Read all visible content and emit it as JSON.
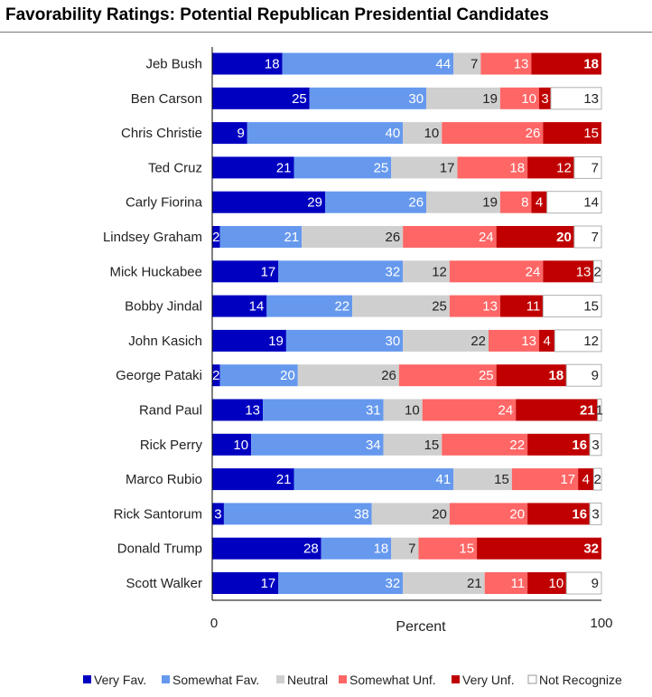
{
  "chart_data": {
    "type": "bar",
    "orientation": "horizontal",
    "stacked": true,
    "title": "Favorability Ratings: Potential Republican Presidential Candidates",
    "xlabel": "Percent",
    "ylabel": "",
    "xlim": [
      0,
      100
    ],
    "xticks": [
      "0",
      "100"
    ],
    "grid": false,
    "legend_position": "bottom",
    "categories": [
      "Jeb Bush",
      "Ben Carson",
      "Chris Christie",
      "Ted Cruz",
      "Carly Fiorina",
      "Lindsey Graham",
      "Mick Huckabee",
      "Bobby Jindal",
      "John Kasich",
      "George Pataki",
      "Rand Paul",
      "Rick Perry",
      "Marco Rubio",
      "Rick Santorum",
      "Donald Trump",
      "Scott Walker"
    ],
    "series": [
      {
        "name": "Very Fav.",
        "color": "#0000c0",
        "values": [
          18,
          25,
          9,
          21,
          29,
          2,
          17,
          14,
          19,
          2,
          13,
          10,
          21,
          3,
          28,
          17
        ]
      },
      {
        "name": "Somewhat Fav.",
        "color": "#6699ee",
        "values": [
          44,
          30,
          40,
          25,
          26,
          21,
          32,
          22,
          30,
          20,
          31,
          34,
          41,
          38,
          18,
          32
        ]
      },
      {
        "name": "Neutral",
        "color": "#cfcfcf",
        "values": [
          7,
          19,
          10,
          17,
          19,
          26,
          12,
          25,
          22,
          26,
          10,
          15,
          15,
          20,
          7,
          21
        ]
      },
      {
        "name": "Somewhat Unf.",
        "color": "#ff6666",
        "values": [
          13,
          10,
          26,
          18,
          8,
          24,
          24,
          13,
          13,
          25,
          24,
          22,
          17,
          20,
          15,
          11
        ]
      },
      {
        "name": "Very Unf.",
        "color": "#c00000",
        "values": [
          18,
          3,
          15,
          12,
          4,
          20,
          13,
          11,
          4,
          18,
          21,
          16,
          4,
          16,
          32,
          10
        ]
      },
      {
        "name": "Not Recognize",
        "color": "#ffffff",
        "values": [
          null,
          13,
          null,
          7,
          14,
          7,
          2,
          15,
          12,
          9,
          1,
          3,
          2,
          3,
          null,
          9
        ]
      }
    ]
  }
}
